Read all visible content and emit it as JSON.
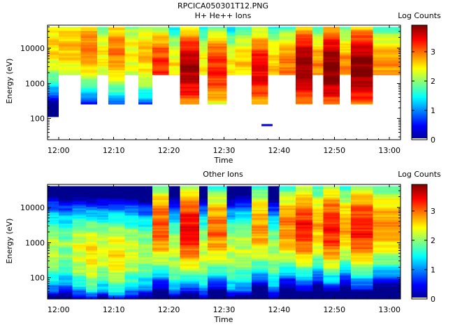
{
  "figure": {
    "filename": "RPCICA050301T12.PNG"
  },
  "colorscale": {
    "stops": [
      "#00008f",
      "#0000ff",
      "#0080ff",
      "#00ffff",
      "#80ff80",
      "#ffff00",
      "#ff8000",
      "#ff0000",
      "#800000"
    ]
  },
  "chart_data": [
    {
      "type": "heatmap",
      "title": "H+ He++ Ions",
      "xlabel": "Time",
      "ylabel": "Energy (eV)",
      "colorbar_label": "Log Counts",
      "y_scale": "log",
      "ylim": [
        25,
        45000
      ],
      "xlim": [
        "11:58",
        "13:02"
      ],
      "clim": [
        0,
        3.9
      ],
      "x_ticks": [
        "12:00",
        "12:10",
        "12:20",
        "12:30",
        "12:40",
        "12:50",
        "13:00"
      ],
      "y_ticks": [
        "100",
        "1000",
        "10000"
      ],
      "colorbar_ticks": [
        "0",
        "1",
        "2",
        "3"
      ],
      "columns": [
        {
          "t_start": "11:58.0",
          "t_end": "12:00.0",
          "e_low": 110,
          "e_high": 40000,
          "peak_energy": 10000,
          "peak_log_counts": 2.6,
          "texture": 0.25
        },
        {
          "t_start": "12:00.0",
          "t_end": "12:04.0",
          "e_low": 1700,
          "e_high": 40000,
          "peak_energy": 10000,
          "peak_log_counts": 2.7,
          "texture": 0.25
        },
        {
          "t_start": "12:04.0",
          "t_end": "12:07.0",
          "e_low": 250,
          "e_high": 40000,
          "peak_energy": 10000,
          "peak_log_counts": 2.95,
          "texture": 0.25
        },
        {
          "t_start": "12:07.0",
          "t_end": "12:09.0",
          "e_low": 1700,
          "e_high": 40000,
          "peak_energy": 6000,
          "peak_log_counts": 2.5,
          "texture": 0.25
        },
        {
          "t_start": "12:09.0",
          "t_end": "12:12.0",
          "e_low": 250,
          "e_high": 40000,
          "peak_energy": 8000,
          "peak_log_counts": 2.95,
          "texture": 0.25
        },
        {
          "t_start": "12:12.0",
          "t_end": "12:14.5",
          "e_low": 1700,
          "e_high": 40000,
          "peak_energy": 6000,
          "peak_log_counts": 2.5,
          "texture": 0.25
        },
        {
          "t_start": "12:14.5",
          "t_end": "12:17.0",
          "e_low": 250,
          "e_high": 40000,
          "peak_energy": 6000,
          "peak_log_counts": 2.7,
          "texture": 0.25
        },
        {
          "t_start": "12:17.0",
          "t_end": "12:20.0",
          "e_low": 1700,
          "e_high": 40000,
          "peak_energy": 2600,
          "peak_log_counts": 3.3,
          "texture": 0.25
        },
        {
          "t_start": "12:20.0",
          "t_end": "12:22.0",
          "e_low": 1700,
          "e_high": 40000,
          "peak_energy": 3000,
          "peak_log_counts": 2.5,
          "texture": 0.25
        },
        {
          "t_start": "12:22.0",
          "t_end": "12:25.5",
          "e_low": 250,
          "e_high": 40000,
          "peak_energy": 2200,
          "peak_log_counts": 3.75,
          "texture": 0.25
        },
        {
          "t_start": "12:25.5",
          "t_end": "12:27.0",
          "e_low": 1700,
          "e_high": 40000,
          "peak_energy": 2800,
          "peak_log_counts": 2.5,
          "texture": 0.25
        },
        {
          "t_start": "12:27.0",
          "t_end": "12:30.5",
          "e_low": 250,
          "e_high": 40000,
          "peak_energy": 2300,
          "peak_log_counts": 3.3,
          "texture": 0.25
        },
        {
          "t_start": "12:30.5",
          "t_end": "12:32.0",
          "e_low": 1700,
          "e_high": 40000,
          "peak_energy": 2600,
          "peak_log_counts": 2.5,
          "texture": 0.25
        },
        {
          "t_start": "12:32.0",
          "t_end": "12:35.0",
          "e_low": 1700,
          "e_high": 40000,
          "peak_energy": 3500,
          "peak_log_counts": 2.6,
          "texture": 0.25
        },
        {
          "t_start": "12:35.0",
          "t_end": "12:38.0",
          "e_low": 250,
          "e_high": 40000,
          "peak_energy": 2000,
          "peak_log_counts": 3.5,
          "texture": 0.25
        },
        {
          "t_start": "12:38.0",
          "t_end": "12:40.0",
          "e_low": 1700,
          "e_high": 40000,
          "peak_energy": 2600,
          "peak_log_counts": 2.7,
          "texture": 0.25
        },
        {
          "t_start": "12:40.0",
          "t_end": "12:43.0",
          "e_low": 1700,
          "e_high": 40000,
          "peak_energy": 2600,
          "peak_log_counts": 3.0,
          "texture": 0.25
        },
        {
          "t_start": "12:43.0",
          "t_end": "12:46.0",
          "e_low": 250,
          "e_high": 40000,
          "peak_energy": 2600,
          "peak_log_counts": 3.85,
          "texture": 0.25
        },
        {
          "t_start": "12:46.0",
          "t_end": "12:48.0",
          "e_low": 1700,
          "e_high": 40000,
          "peak_energy": 2600,
          "peak_log_counts": 2.9,
          "texture": 0.25
        },
        {
          "t_start": "12:48.0",
          "t_end": "12:51.0",
          "e_low": 250,
          "e_high": 40000,
          "peak_energy": 2300,
          "peak_log_counts": 3.95,
          "texture": 0.25
        },
        {
          "t_start": "12:51.0",
          "t_end": "12:53.0",
          "e_low": 1700,
          "e_high": 40000,
          "peak_energy": 2600,
          "peak_log_counts": 2.9,
          "texture": 0.25
        },
        {
          "t_start": "12:53.0",
          "t_end": "12:57.0",
          "e_low": 250,
          "e_high": 40000,
          "peak_energy": 2400,
          "peak_log_counts": 3.9,
          "texture": 0.25
        },
        {
          "t_start": "12:57.0",
          "t_end": "13:02.0",
          "e_low": 1700,
          "e_high": 40000,
          "peak_energy": 2600,
          "peak_log_counts": 2.9,
          "texture": 0.25
        }
      ],
      "annotations": [
        {
          "t_start": "12:36.8",
          "t_end": "12:38.8",
          "energy": 65,
          "log_counts": 0.3
        }
      ]
    },
    {
      "type": "heatmap",
      "title": "Other Ions",
      "xlabel": "Time",
      "ylabel": "Energy (eV)",
      "colorbar_label": "Log Counts",
      "y_scale": "log",
      "ylim": [
        25,
        45000
      ],
      "xlim": [
        "11:58",
        "13:02"
      ],
      "clim": [
        0,
        3.9
      ],
      "x_ticks": [
        "12:00",
        "12:10",
        "12:20",
        "12:30",
        "12:40",
        "12:50",
        "13:00"
      ],
      "y_ticks": [
        "100",
        "1000",
        "10000"
      ],
      "colorbar_ticks": [
        "0",
        "1",
        "2",
        "3"
      ],
      "columns": [
        {
          "t_start": "11:58.0",
          "t_end": "12:00.0",
          "e_low": 25,
          "e_high": 40000,
          "peak_energy": 600,
          "peak_log_counts": 2.2,
          "texture": 0.3
        },
        {
          "t_start": "12:00.0",
          "t_end": "12:02.5",
          "e_low": 25,
          "e_high": 40000,
          "peak_energy": 600,
          "peak_log_counts": 2.0,
          "texture": 0.3
        },
        {
          "t_start": "12:02.5",
          "t_end": "12:05.0",
          "e_low": 25,
          "e_high": 40000,
          "peak_energy": 500,
          "peak_log_counts": 2.35,
          "texture": 0.3
        },
        {
          "t_start": "12:05.0",
          "t_end": "12:07.0",
          "e_low": 25,
          "e_high": 40000,
          "peak_energy": 400,
          "peak_log_counts": 2.55,
          "texture": 0.3
        },
        {
          "t_start": "12:07.0",
          "t_end": "12:09.0",
          "e_low": 25,
          "e_high": 40000,
          "peak_energy": 500,
          "peak_log_counts": 2.3,
          "texture": 0.3
        },
        {
          "t_start": "12:09.0",
          "t_end": "12:12.0",
          "e_low": 25,
          "e_high": 40000,
          "peak_energy": 400,
          "peak_log_counts": 2.55,
          "texture": 0.3
        },
        {
          "t_start": "12:12.0",
          "t_end": "12:14.5",
          "e_low": 25,
          "e_high": 40000,
          "peak_energy": 500,
          "peak_log_counts": 2.3,
          "texture": 0.3
        },
        {
          "t_start": "12:14.5",
          "t_end": "12:17.0",
          "e_low": 25,
          "e_high": 40000,
          "peak_energy": 500,
          "peak_log_counts": 2.1,
          "texture": 0.3
        },
        {
          "t_start": "12:17.0",
          "t_end": "12:20.0",
          "e_low": 25,
          "e_high": 40000,
          "peak_energy": 2700,
          "peak_log_counts": 3.1,
          "texture": 0.3
        },
        {
          "t_start": "12:20.0",
          "t_end": "12:22.0",
          "e_low": 25,
          "e_high": 40000,
          "peak_energy": 500,
          "peak_log_counts": 2.2,
          "texture": 0.3
        },
        {
          "t_start": "12:22.0",
          "t_end": "12:25.5",
          "e_low": 25,
          "e_high": 40000,
          "peak_energy": 2200,
          "peak_log_counts": 3.45,
          "texture": 0.3
        },
        {
          "t_start": "12:25.5",
          "t_end": "12:27.0",
          "e_low": 25,
          "e_high": 40000,
          "peak_energy": 500,
          "peak_log_counts": 2.25,
          "texture": 0.3
        },
        {
          "t_start": "12:27.0",
          "t_end": "12:30.5",
          "e_low": 25,
          "e_high": 40000,
          "peak_energy": 2300,
          "peak_log_counts": 3.0,
          "texture": 0.3
        },
        {
          "t_start": "12:30.5",
          "t_end": "12:32.0",
          "e_low": 25,
          "e_high": 40000,
          "peak_energy": 500,
          "peak_log_counts": 2.2,
          "texture": 0.3
        },
        {
          "t_start": "12:32.0",
          "t_end": "12:35.0",
          "e_low": 25,
          "e_high": 40000,
          "peak_energy": 600,
          "peak_log_counts": 2.2,
          "texture": 0.3
        },
        {
          "t_start": "12:35.0",
          "t_end": "12:38.0",
          "e_low": 25,
          "e_high": 40000,
          "peak_energy": 2500,
          "peak_log_counts": 2.85,
          "texture": 0.3
        },
        {
          "t_start": "12:38.0",
          "t_end": "12:40.0",
          "e_low": 25,
          "e_high": 40000,
          "peak_energy": 500,
          "peak_log_counts": 2.1,
          "texture": 0.3
        },
        {
          "t_start": "12:40.0",
          "t_end": "12:43.0",
          "e_low": 25,
          "e_high": 40000,
          "peak_energy": 2600,
          "peak_log_counts": 2.9,
          "texture": 0.3
        },
        {
          "t_start": "12:43.0",
          "t_end": "12:46.0",
          "e_low": 25,
          "e_high": 40000,
          "peak_energy": 2600,
          "peak_log_counts": 3.3,
          "texture": 0.3
        },
        {
          "t_start": "12:46.0",
          "t_end": "12:48.0",
          "e_low": 25,
          "e_high": 40000,
          "peak_energy": 2600,
          "peak_log_counts": 2.75,
          "texture": 0.3
        },
        {
          "t_start": "12:48.0",
          "t_end": "12:51.0",
          "e_low": 25,
          "e_high": 40000,
          "peak_energy": 2400,
          "peak_log_counts": 3.35,
          "texture": 0.3
        },
        {
          "t_start": "12:51.0",
          "t_end": "12:53.0",
          "e_low": 25,
          "e_high": 40000,
          "peak_energy": 2600,
          "peak_log_counts": 2.75,
          "texture": 0.3
        },
        {
          "t_start": "12:53.0",
          "t_end": "12:57.0",
          "e_low": 25,
          "e_high": 40000,
          "peak_energy": 2500,
          "peak_log_counts": 3.35,
          "texture": 0.3
        },
        {
          "t_start": "12:57.0",
          "t_end": "13:02.0",
          "e_low": 25,
          "e_high": 40000,
          "peak_energy": 2700,
          "peak_log_counts": 2.85,
          "texture": 0.3
        }
      ],
      "annotations": []
    }
  ]
}
